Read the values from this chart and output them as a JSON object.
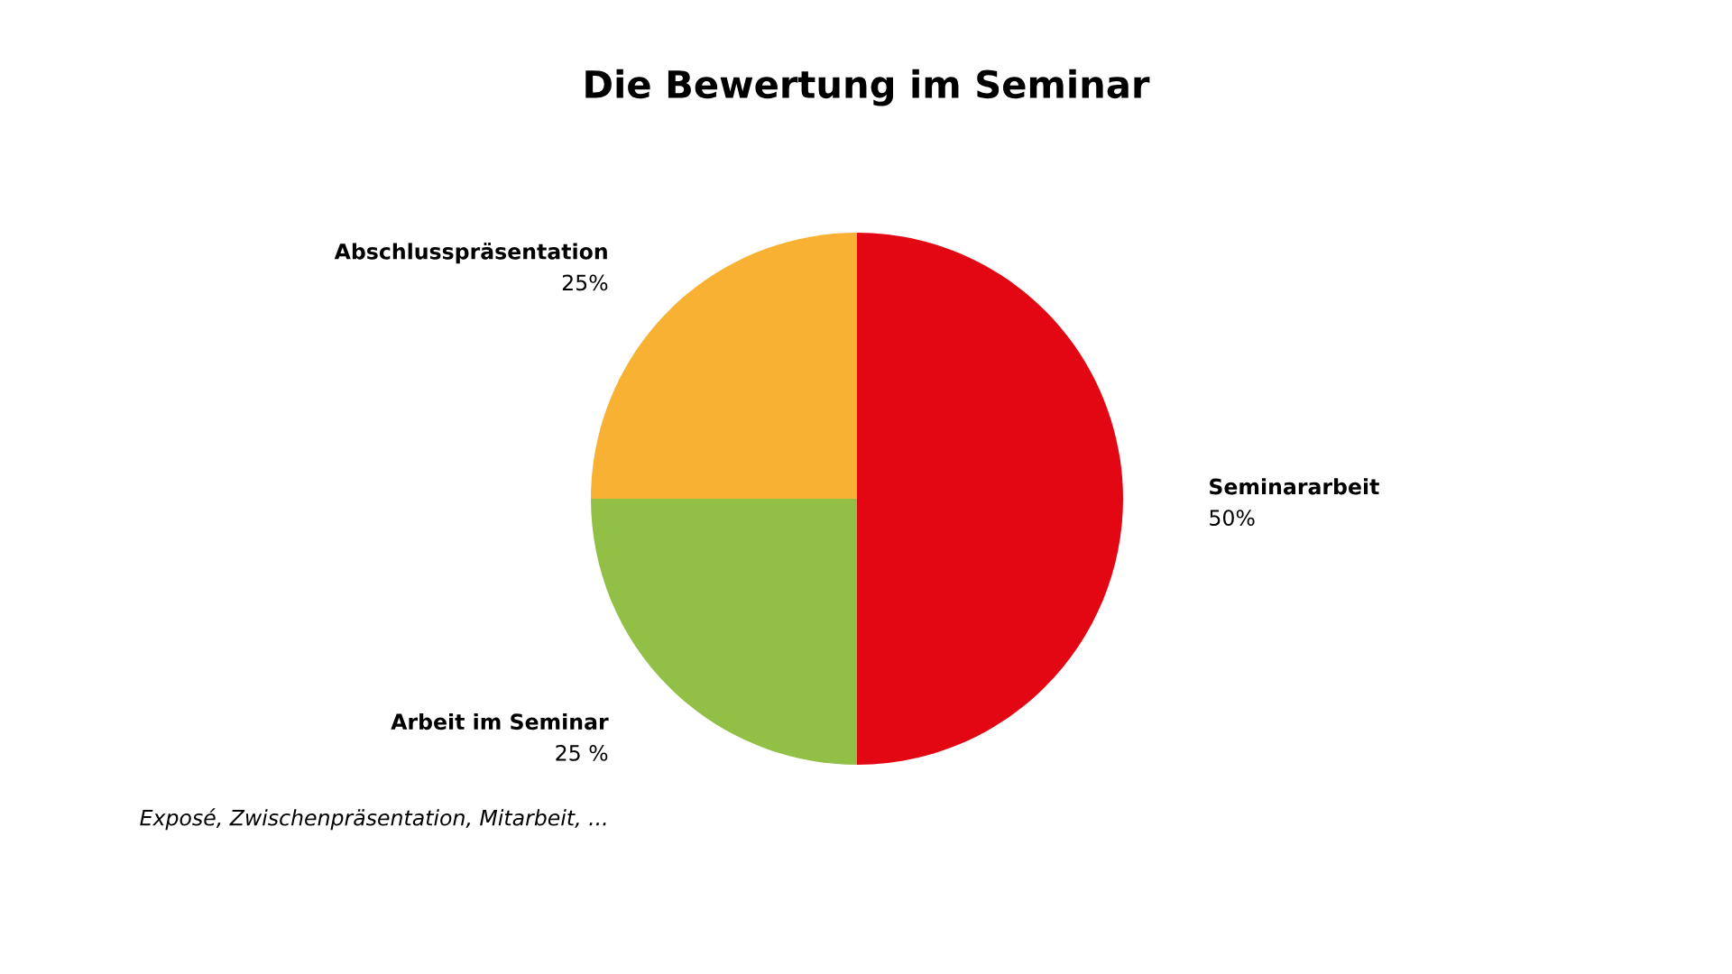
{
  "chart_data": {
    "type": "pie",
    "title": "Die Bewertung im Seminar",
    "categories": [
      "Seminararbeit",
      "Arbeit im Seminar",
      "Abschlusspräsentation"
    ],
    "values": [
      50,
      25,
      25
    ],
    "value_labels": [
      "50%",
      "25 %",
      "25%"
    ],
    "colors": [
      "#e30613",
      "#92c046",
      "#f8b133"
    ],
    "annotations": [
      "Exposé, Zwischenpräsentation, Mitarbeit, ..."
    ],
    "legend": false
  }
}
